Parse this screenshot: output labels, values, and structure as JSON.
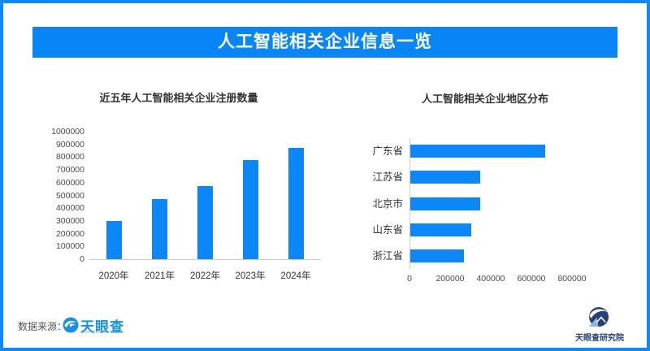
{
  "page": {
    "banner_title": "人工智能相关企业信息一览"
  },
  "theme": {
    "banner_blue": "#0886f8",
    "border_blue": "#0d8af8",
    "bar_blue": "#0b87f8",
    "navy": "#24407c",
    "title_text": "#333333",
    "tick_text": "#4a4a4a"
  },
  "chart_data": [
    {
      "id": "ai-registrations-by-year",
      "type": "bar",
      "title": "近五年人工智能相关企业注册数量",
      "categories": [
        "2020年",
        "2021年",
        "2022年",
        "2023年",
        "2024年"
      ],
      "values": [
        300000,
        470000,
        575000,
        775000,
        870000
      ],
      "xlabel": "",
      "ylabel": "",
      "ylim": [
        0,
        1000000
      ],
      "yticks": [
        0,
        100000,
        200000,
        300000,
        400000,
        500000,
        600000,
        700000,
        800000,
        900000,
        1000000
      ],
      "grid": false,
      "legend": false,
      "bar_color": "#0b87f8"
    },
    {
      "id": "ai-companies-by-region",
      "type": "bar_horizontal",
      "title": "人工智能相关企业地区分布",
      "categories": [
        "广东省",
        "江苏省",
        "北京市",
        "山东省",
        "浙江省"
      ],
      "values": [
        665000,
        345000,
        343000,
        300000,
        265000
      ],
      "xlabel": "",
      "ylabel": "",
      "xlim": [
        0,
        800000
      ],
      "xticks": [
        0,
        200000,
        400000,
        600000,
        800000
      ],
      "grid": false,
      "legend": false,
      "bar_color": "#0b87f8"
    }
  ],
  "footer": {
    "source_label": "数据来源：",
    "tianyancha_wordmark": "天眼查",
    "tianyancha_url": "TianYanCha.com",
    "research_institute": "天眼查研究院"
  }
}
